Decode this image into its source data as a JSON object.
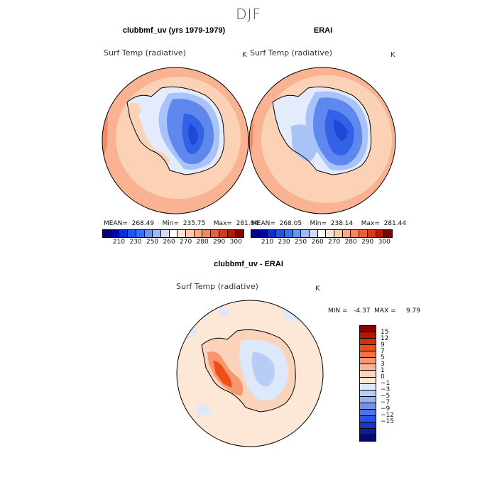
{
  "season": "DJF",
  "panels": {
    "model": {
      "title": "clubbmf_uv (yrs 1979-1979)",
      "variable": "Surf Temp (radiative)",
      "unit": "K",
      "stats": "MEAN=  268.49    Min=  235.75    Max=  281.84"
    },
    "obs": {
      "title": "ERAI",
      "variable": "Surf Temp (radiative)",
      "unit": "K",
      "stats": "MEAN=  268.05    Min=  238.14    Max=  281.44"
    },
    "diff": {
      "title": "clubbmf_uv - ERAI",
      "variable": "Surf Temp (radiative)",
      "unit": "K",
      "stats": "MIN =   -4.37  MAX =     9.79"
    }
  },
  "abs_colorbar": {
    "colors": [
      "#00007f",
      "#0000b3",
      "#0a2fd6",
      "#1f55e8",
      "#3a70f0",
      "#6a94f4",
      "#9fb9f8",
      "#cddcfb",
      "#ffffff",
      "#fde5d2",
      "#fccbab",
      "#f9a988",
      "#f48763",
      "#e8613e",
      "#d43a1c",
      "#b11a07",
      "#800000"
    ],
    "labels": [
      "210",
      "230",
      "250",
      "260",
      "270",
      "280",
      "290",
      "300"
    ]
  },
  "diff_colorbar": {
    "colors_top_to_bottom": [
      "#8b0000",
      "#b21606",
      "#d5300c",
      "#ee4f17",
      "#f37040",
      "#f7966f",
      "#f9b695",
      "#fbd3bb",
      "#fde7d6",
      "#dde8fa",
      "#b8cdf6",
      "#94b2f2",
      "#6f94ee",
      "#4b74ea",
      "#2952e6",
      "#1a34c4",
      "#0d1c9e",
      "#020a73"
    ],
    "labels_top_to_bottom": [
      "15",
      "12",
      "9",
      "7",
      "5",
      "3",
      "1",
      "0",
      "−1",
      "−3",
      "−5",
      "−7",
      "−9",
      "−12",
      "−15"
    ]
  },
  "map_colors": {
    "ocean_warm": "#fcd2b6",
    "ocean_warmer": "#f9b392",
    "ocean_hot": "#f48b66",
    "ice_light": "#e4ecfb",
    "ice_mid": "#a9c2f7",
    "ice_blue": "#5e88ee",
    "ice_deep": "#3462e6",
    "ice_core": "#1d48d8",
    "diff_bg": "#fde7d6",
    "diff_neg1": "#dde8fa",
    "diff_neg2": "#b8cdf6",
    "diff_pos1": "#fbd3bb",
    "diff_pos2": "#f7966f",
    "diff_pos3": "#ee4f17"
  }
}
